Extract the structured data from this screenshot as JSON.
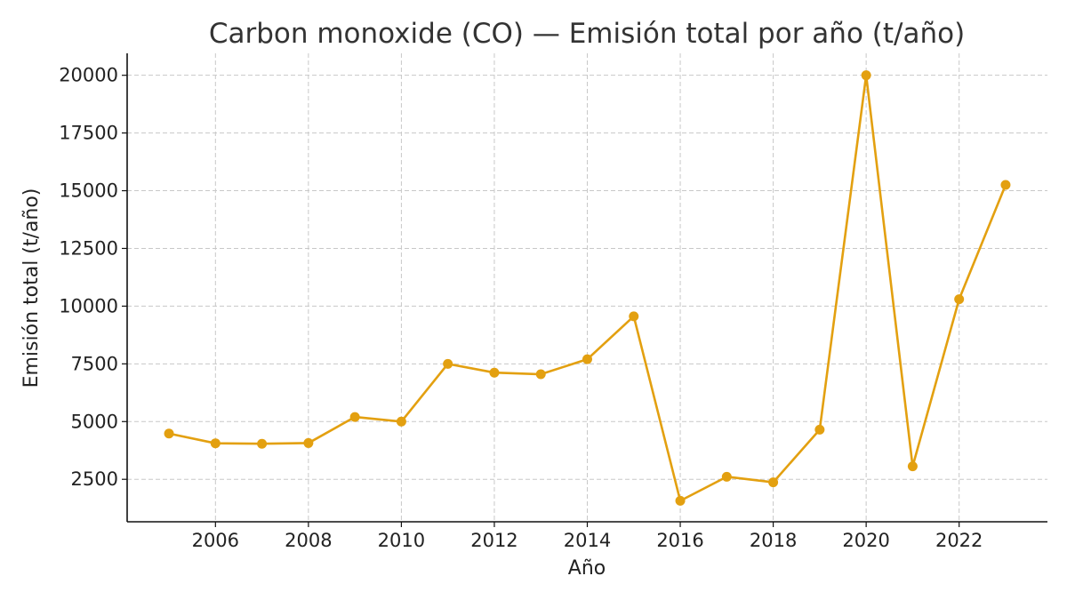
{
  "chart_data": {
    "type": "line",
    "title": "Carbon monoxide (CO) — Emisión total por año (t/año)",
    "xlabel": "Año",
    "ylabel": "Emisión total (t/año)",
    "xlim": [
      2004.1,
      2023.9
    ],
    "ylim": [
      660,
      20950
    ],
    "xticks": [
      2006,
      2008,
      2010,
      2012,
      2014,
      2016,
      2018,
      2020,
      2022
    ],
    "yticks": [
      2500,
      5000,
      7500,
      10000,
      12500,
      15000,
      17500,
      20000
    ],
    "grid": true,
    "color": "#E3A010",
    "series": [
      {
        "x": [
          2005,
          2006,
          2007,
          2008,
          2009,
          2010,
          2011,
          2012,
          2013,
          2014,
          2015,
          2016,
          2017,
          2018,
          2019,
          2020,
          2021,
          2022,
          2023
        ],
        "y": [
          4480,
          4060,
          4040,
          4070,
          5200,
          5000,
          7500,
          7120,
          7050,
          7700,
          9560,
          1570,
          2610,
          2370,
          4650,
          20000,
          3060,
          10300,
          15250
        ]
      }
    ]
  }
}
